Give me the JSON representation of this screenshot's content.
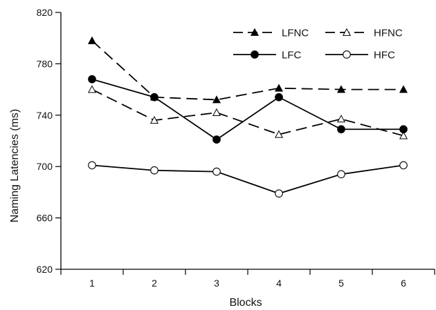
{
  "chart_data": {
    "type": "line",
    "xlabel": "Blocks",
    "ylabel": "Naming Latencies (ms)",
    "x": [
      1,
      2,
      3,
      4,
      5,
      6
    ],
    "x_tick_labels": [
      "1",
      "2",
      "3",
      "4",
      "5",
      "6"
    ],
    "xlim": [
      0.5,
      6.5
    ],
    "ylim": [
      620,
      820
    ],
    "y_ticks": [
      620,
      660,
      700,
      740,
      780,
      820
    ],
    "y_tick_labels": [
      "620",
      "660",
      "700",
      "740",
      "780",
      "820"
    ],
    "grid": false,
    "legend_position": "top-right",
    "series": [
      {
        "name": "LFNC",
        "values": [
          798,
          754,
          752,
          761,
          760,
          760
        ],
        "line": "dashed",
        "marker": "triangle",
        "fill": "filled",
        "color": "#000000"
      },
      {
        "name": "HFNC",
        "values": [
          760,
          736,
          742,
          725,
          737,
          724
        ],
        "line": "dashed",
        "marker": "triangle",
        "fill": "open",
        "color": "#000000"
      },
      {
        "name": "LFC",
        "values": [
          768,
          754,
          721,
          754,
          729,
          729
        ],
        "line": "solid",
        "marker": "circle",
        "fill": "filled",
        "color": "#000000"
      },
      {
        "name": "HFC",
        "values": [
          701,
          697,
          696,
          679,
          694,
          701
        ],
        "line": "solid",
        "marker": "circle",
        "fill": "open",
        "color": "#000000"
      }
    ]
  }
}
